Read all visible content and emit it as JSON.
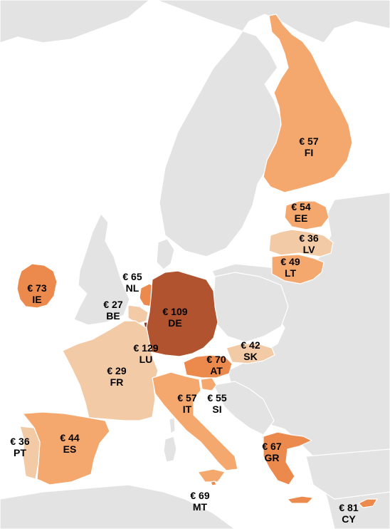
{
  "map": {
    "countries": [
      {
        "id": "FI",
        "value": "€ 57",
        "code": "FI",
        "color": "#f5a86e"
      },
      {
        "id": "EE",
        "value": "€ 54",
        "code": "EE",
        "color": "#f5a86e"
      },
      {
        "id": "LV",
        "value": "€ 36",
        "code": "LV",
        "color": "#f2cba6"
      },
      {
        "id": "LT",
        "value": "€ 49",
        "code": "LT",
        "color": "#f5a86e"
      },
      {
        "id": "NL",
        "value": "€ 65",
        "code": "NL",
        "color": "#ec8a4e"
      },
      {
        "id": "IE",
        "value": "€ 73",
        "code": "IE",
        "color": "#ec8a4e"
      },
      {
        "id": "BE",
        "value": "€ 27",
        "code": "BE",
        "color": "#f2cba6"
      },
      {
        "id": "DE",
        "value": "€ 109",
        "code": "DE",
        "color": "#b0532e"
      },
      {
        "id": "LU",
        "value": "€ 129",
        "code": "LU",
        "color": "#8e3a1a"
      },
      {
        "id": "FR",
        "value": "€ 29",
        "code": "FR",
        "color": "#f2cba6"
      },
      {
        "id": "SK",
        "value": "€ 42",
        "code": "SK",
        "color": "#f2cba6"
      },
      {
        "id": "AT",
        "value": "€ 70",
        "code": "AT",
        "color": "#ec8a4e"
      },
      {
        "id": "IT",
        "value": "€ 57",
        "code": "IT",
        "color": "#f5a86e"
      },
      {
        "id": "SI",
        "value": "€ 55",
        "code": "SI",
        "color": "#f5a86e"
      },
      {
        "id": "PT",
        "value": "€ 36",
        "code": "PT",
        "color": "#f2cba6"
      },
      {
        "id": "ES",
        "value": "€ 44",
        "code": "ES",
        "color": "#f5a86e"
      },
      {
        "id": "GR",
        "value": "€ 67",
        "code": "GR",
        "color": "#ec8a4e"
      },
      {
        "id": "MT",
        "value": "€ 69",
        "code": "MT",
        "color": "#ec8a4e"
      },
      {
        "id": "CY",
        "value": "€ 81",
        "code": "CY",
        "color": "#ec8a4e"
      }
    ]
  }
}
